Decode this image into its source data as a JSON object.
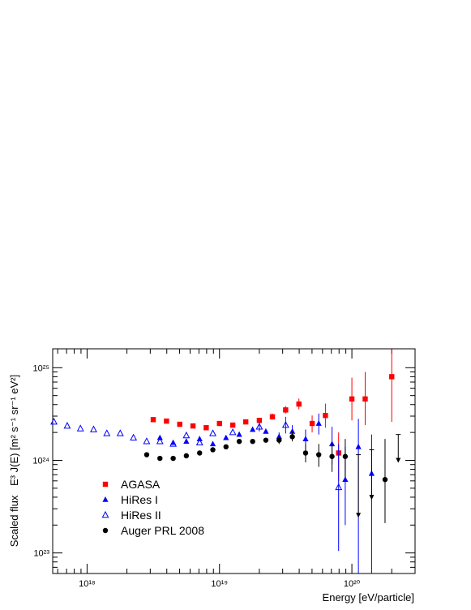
{
  "chart_data": {
    "type": "scatter",
    "xscale": "log",
    "yscale": "log",
    "xlim": [
      5.5e+17,
      3e+20
    ],
    "ylim": [
      6e+22,
      1.6e+25
    ],
    "xlabel": "Energy [eV/particle]",
    "ylabel_prefix": "Scaled flux",
    "ylabel_expr": "E³ J(E) [m² s⁻¹ sr⁻¹ eV²]",
    "xticks": [
      {
        "value": 1e+18,
        "label": "10¹⁸"
      },
      {
        "value": 1e+19,
        "label": "10¹⁹"
      },
      {
        "value": 1e+20,
        "label": "10²⁰"
      }
    ],
    "yticks": [
      {
        "value": 1e+23,
        "label": "10²³"
      },
      {
        "value": 1e+24,
        "label": "10²⁴"
      },
      {
        "value": 1e+25,
        "label": "10²⁵"
      }
    ],
    "grid": false,
    "legend_position": "bottom-left",
    "series": [
      {
        "name": "AGASA",
        "marker": "square",
        "color": "#ff0000",
        "points": [
          {
            "x": 3.16e+18,
            "y": 2.75e+24
          },
          {
            "x": 3.98e+18,
            "y": 2.65e+24
          },
          {
            "x": 5.01e+18,
            "y": 2.45e+24
          },
          {
            "x": 6.31e+18,
            "y": 2.35e+24
          },
          {
            "x": 7.94e+18,
            "y": 2.25e+24
          },
          {
            "x": 1e+19,
            "y": 2.5e+24
          },
          {
            "x": 1.26e+19,
            "y": 2.4e+24
          },
          {
            "x": 1.58e+19,
            "y": 2.6e+24
          },
          {
            "x": 2e+19,
            "y": 2.7e+24
          },
          {
            "x": 2.51e+19,
            "y": 2.95e+24,
            "ylo": 2.75e+24,
            "yhi": 3.2e+24
          },
          {
            "x": 3.16e+19,
            "y": 3.5e+24,
            "ylo": 3.2e+24,
            "yhi": 3.85e+24
          },
          {
            "x": 3.98e+19,
            "y": 4.05e+24,
            "ylo": 3.55e+24,
            "yhi": 4.65e+24
          },
          {
            "x": 5.01e+19,
            "y": 2.5e+24,
            "ylo": 2e+24,
            "yhi": 3.05e+24
          },
          {
            "x": 6.31e+19,
            "y": 3.05e+24,
            "ylo": 2.25e+24,
            "yhi": 4.1e+24
          },
          {
            "x": 7.94e+19,
            "y": 1.2e+24,
            "ylo": 6e+23,
            "yhi": 2e+24
          },
          {
            "x": 1e+20,
            "y": 4.6e+24,
            "ylo": 2.7e+24,
            "yhi": 7.8e+24
          },
          {
            "x": 1.26e+20,
            "y": 4.6e+24,
            "ylo": 2.4e+24,
            "yhi": 9e+24
          },
          {
            "x": 2e+20,
            "y": 8e+24,
            "ylo": 2.6e+24,
            "yhi": 1.6e+25
          }
        ]
      },
      {
        "name": "HiRes I",
        "marker": "triangle",
        "color": "#0000ff",
        "points": [
          {
            "x": 3.55e+18,
            "y": 1.75e+24
          },
          {
            "x": 4.47e+18,
            "y": 1.55e+24
          },
          {
            "x": 5.62e+18,
            "y": 1.6e+24
          },
          {
            "x": 7.08e+18,
            "y": 1.7e+24
          },
          {
            "x": 8.91e+18,
            "y": 1.5e+24
          },
          {
            "x": 1.12e+19,
            "y": 1.75e+24
          },
          {
            "x": 1.41e+19,
            "y": 1.9e+24
          },
          {
            "x": 1.78e+19,
            "y": 2.15e+24
          },
          {
            "x": 2.24e+19,
            "y": 2.05e+24
          },
          {
            "x": 2.82e+19,
            "y": 1.8e+24,
            "ylo": 1.6e+24,
            "yhi": 2e+24
          },
          {
            "x": 3.55e+19,
            "y": 2.05e+24,
            "ylo": 1.75e+24,
            "yhi": 2.4e+24
          },
          {
            "x": 4.47e+19,
            "y": 1.7e+24,
            "ylo": 1.3e+24,
            "yhi": 2.15e+24
          },
          {
            "x": 5.62e+19,
            "y": 2.5e+24,
            "ylo": 1.9e+24,
            "yhi": 3.2e+24
          },
          {
            "x": 7.08e+19,
            "y": 1.5e+24,
            "ylo": 9e+23,
            "yhi": 2.3e+24
          },
          {
            "x": 8.91e+19,
            "y": 6.2e+23,
            "ylo": 2e+23,
            "yhi": 1.4e+24
          },
          {
            "x": 1.12e+20,
            "y": 1.4e+24,
            "ylo": 6e+22,
            "yhi": 2.8e+24
          },
          {
            "x": 1.41e+20,
            "y": 7.2e+23,
            "ylo": 6e+22,
            "yhi": 1.9e+24
          }
        ]
      },
      {
        "name": "HiRes II",
        "marker": "open-triangle",
        "color": "#0000ff",
        "points": [
          {
            "x": 5.62e+17,
            "y": 2.6e+24
          },
          {
            "x": 7.08e+17,
            "y": 2.35e+24
          },
          {
            "x": 8.91e+17,
            "y": 2.2e+24
          },
          {
            "x": 1.12e+18,
            "y": 2.15e+24
          },
          {
            "x": 1.41e+18,
            "y": 1.95e+24
          },
          {
            "x": 1.78e+18,
            "y": 1.95e+24
          },
          {
            "x": 2.24e+18,
            "y": 1.75e+24
          },
          {
            "x": 2.82e+18,
            "y": 1.6e+24
          },
          {
            "x": 3.55e+18,
            "y": 1.6e+24
          },
          {
            "x": 4.47e+18,
            "y": 1.5e+24
          },
          {
            "x": 5.62e+18,
            "y": 1.85e+24
          },
          {
            "x": 7.08e+18,
            "y": 1.55e+24
          },
          {
            "x": 8.91e+18,
            "y": 1.95e+24
          },
          {
            "x": 1.26e+19,
            "y": 2e+24
          },
          {
            "x": 2e+19,
            "y": 2.3e+24,
            "ylo": 2.05e+24,
            "yhi": 2.6e+24
          },
          {
            "x": 3.16e+19,
            "y": 2.4e+24,
            "ylo": 1.95e+24,
            "yhi": 2.95e+24
          },
          {
            "x": 7.94e+19,
            "y": 5.1e+23,
            "ylo": 1.05e+23,
            "yhi": 1.5e+24
          }
        ]
      },
      {
        "name": "Auger PRL 2008",
        "marker": "circle",
        "color": "#000000",
        "points": [
          {
            "x": 2.82e+18,
            "y": 1.15e+24
          },
          {
            "x": 3.55e+18,
            "y": 1.05e+24
          },
          {
            "x": 4.47e+18,
            "y": 1.05e+24
          },
          {
            "x": 5.62e+18,
            "y": 1.12e+24
          },
          {
            "x": 7.08e+18,
            "y": 1.2e+24
          },
          {
            "x": 8.91e+18,
            "y": 1.3e+24
          },
          {
            "x": 1.12e+19,
            "y": 1.4e+24
          },
          {
            "x": 1.41e+19,
            "y": 1.6e+24
          },
          {
            "x": 1.78e+19,
            "y": 1.6e+24
          },
          {
            "x": 2.24e+19,
            "y": 1.65e+24
          },
          {
            "x": 2.82e+19,
            "y": 1.65e+24,
            "ylo": 1.5e+24,
            "yhi": 1.8e+24
          },
          {
            "x": 3.55e+19,
            "y": 1.8e+24,
            "ylo": 1.6e+24,
            "yhi": 2.05e+24
          },
          {
            "x": 4.47e+19,
            "y": 1.2e+24,
            "ylo": 9.5e+23,
            "yhi": 1.5e+24
          },
          {
            "x": 5.62e+19,
            "y": 1.15e+24,
            "ylo": 8.5e+23,
            "yhi": 1.5e+24
          },
          {
            "x": 7.08e+19,
            "y": 1.1e+24,
            "ylo": 7.5e+23,
            "yhi": 1.55e+24
          },
          {
            "x": 8.91e+19,
            "y": 1.1e+24,
            "ylo": 6.5e+23,
            "yhi": 1.7e+24
          },
          {
            "x": 1.12e+20,
            "y": 2.5e+23,
            "upper_limit": true,
            "yhi": 1.15e+24
          },
          {
            "x": 1.41e+20,
            "y": 3.9e+23,
            "upper_limit": true,
            "yhi": 1.3e+24
          },
          {
            "x": 1.78e+20,
            "y": 6.2e+23,
            "ylo": 2.1e+23,
            "yhi": 1.7e+24
          },
          {
            "x": 2.24e+20,
            "y": 9.8e+23,
            "upper_limit": true,
            "yhi": 1.9e+24
          }
        ]
      }
    ]
  }
}
